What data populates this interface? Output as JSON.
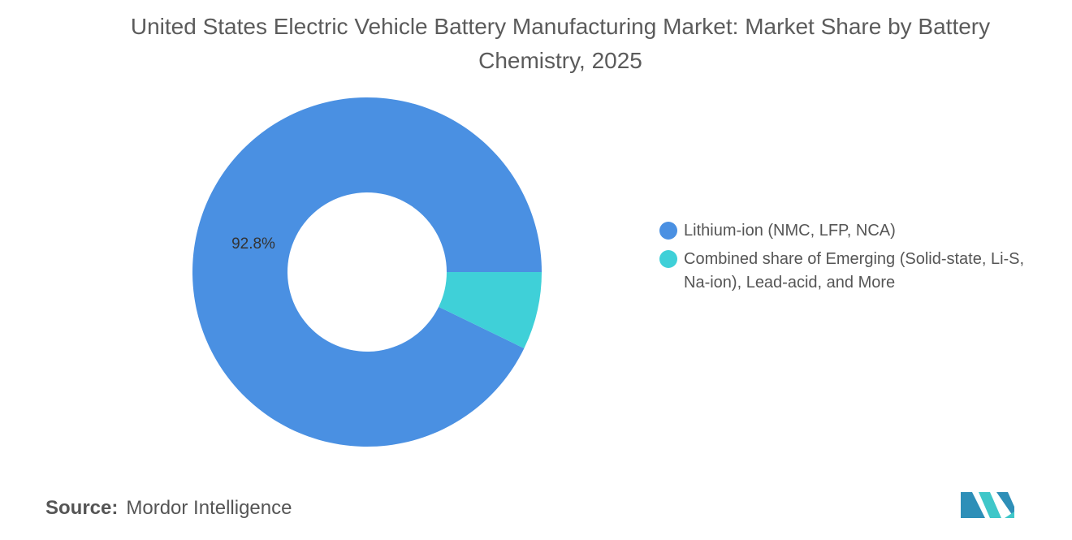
{
  "chart_data": {
    "type": "donut",
    "title": "United States Electric Vehicle Battery Manufacturing Market: Market Share by Battery Chemistry, 2025",
    "categories": [
      "Lithium-ion (NMC, LFP, NCA)",
      "Combined share of Emerging (Solid-state, Li-S, Na-ion), Lead-acid, and More"
    ],
    "values": [
      92.8,
      7.2
    ],
    "value_labels": [
      "92.8%",
      null
    ],
    "colors": [
      "#4a90e2",
      "#3fd0d8"
    ],
    "legend": "right"
  },
  "source_label": "Source:",
  "source": "Mordor Intelligence"
}
